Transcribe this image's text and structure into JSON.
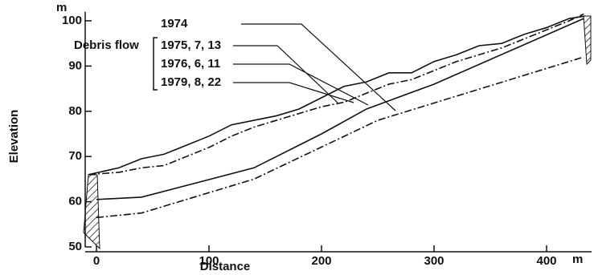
{
  "chart_data": {
    "type": "line",
    "y_label": "Elevation",
    "x_label": "Distance",
    "y_unit": "m",
    "x_unit": "m",
    "annotation": "Debris flow",
    "xlim": [
      -10,
      440
    ],
    "xticks": [
      0,
      100,
      200,
      300,
      400
    ],
    "ylim": [
      50,
      102
    ],
    "yticks": [
      50,
      60,
      70,
      80,
      90,
      100
    ],
    "series": [
      {
        "name": "1974",
        "color": "#111111",
        "style": "solid",
        "x": [
          -7,
          20,
          40,
          60,
          80,
          100,
          120,
          140,
          160,
          180,
          200,
          220,
          240,
          260,
          280,
          300,
          320,
          340,
          360,
          380,
          400,
          420,
          433
        ],
        "values": [
          66,
          67.5,
          69.5,
          70.5,
          72.5,
          74.5,
          77,
          78,
          79,
          80.5,
          83,
          85.5,
          86.5,
          88.5,
          88.5,
          91,
          92.5,
          94.5,
          95,
          97,
          98.5,
          100.5,
          101
        ]
      },
      {
        "name": "1975, 7, 13",
        "color": "#111111",
        "style": "dashdot",
        "x": [
          -7,
          20,
          40,
          60,
          80,
          100,
          120,
          140,
          160,
          180,
          200,
          220,
          240,
          260,
          280,
          300,
          320,
          340,
          360,
          380,
          400,
          420,
          433
        ],
        "values": [
          66,
          66.5,
          67.5,
          68,
          70,
          72,
          74.5,
          76.5,
          78,
          79.5,
          81,
          82,
          84,
          86,
          87,
          89,
          91,
          92.5,
          94,
          96,
          98,
          100,
          101.5
        ]
      },
      {
        "name": "1976, 6, 11",
        "color": "#111111",
        "style": "solid",
        "x": [
          0,
          40,
          140,
          200,
          240,
          300,
          433
        ],
        "values": [
          60.5,
          61,
          67.5,
          75,
          80.5,
          86,
          100.5
        ]
      },
      {
        "name": "1979, 8, 22",
        "color": "#111111",
        "style": "dashdot",
        "x": [
          0,
          40,
          140,
          250,
          433
        ],
        "values": [
          56.5,
          57.5,
          65,
          78,
          92
        ]
      }
    ]
  }
}
